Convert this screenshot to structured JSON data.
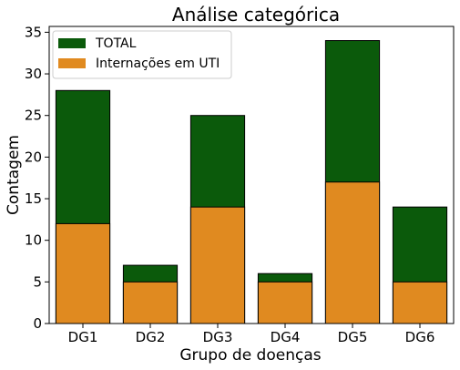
{
  "chart_data": {
    "type": "bar",
    "title": "Análise categórica",
    "xlabel": "Grupo de doenças",
    "ylabel": "Contagem",
    "categories": [
      "DG1",
      "DG2",
      "DG3",
      "DG4",
      "DG5",
      "DG6"
    ],
    "series": [
      {
        "name": "TOTAL",
        "values": [
          28,
          7,
          25,
          6,
          34,
          14
        ],
        "color": "#0b5a0b"
      },
      {
        "name": "Internações em UTI",
        "values": [
          12,
          5,
          14,
          5,
          17,
          5
        ],
        "color": "#e08a20"
      }
    ],
    "ylim": [
      0,
      35.7
    ],
    "yticks": [
      0,
      5,
      10,
      15,
      20,
      25,
      30,
      35
    ],
    "grid": false,
    "legend_position": "top-left",
    "bar_edge_color": "#000000"
  }
}
